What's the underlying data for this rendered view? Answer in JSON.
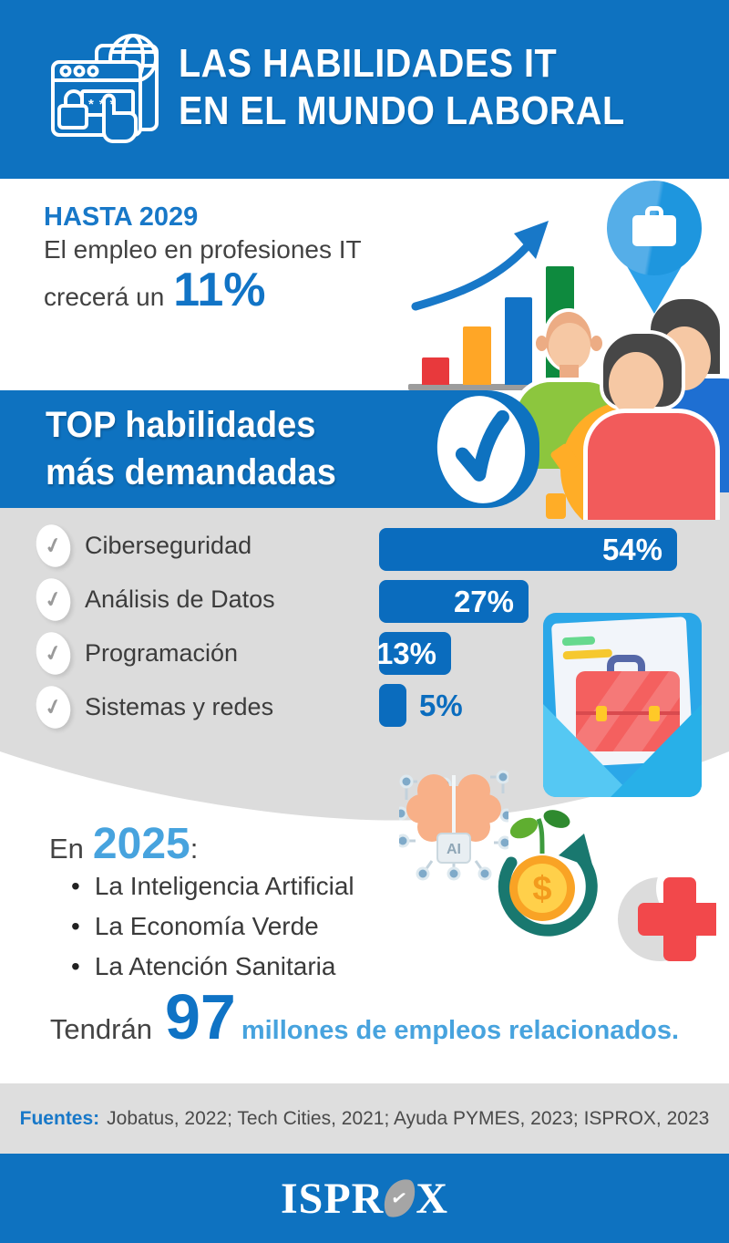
{
  "colors": {
    "primary_blue": "#0E72C0",
    "bar_blue": "#0A6CBE",
    "accent_blue": "#1878C8",
    "light_blue": "#47A3DE",
    "gray_background": "#DCDCDC",
    "dark_text": "#3C3C3C"
  },
  "header": {
    "title_line1": "LAS HABILIDADES IT",
    "title_line2": "EN EL MUNDO LABORAL"
  },
  "hero": {
    "kicker": "HASTA 2029",
    "line1": "El empleo en profesiones IT",
    "line2": "crecerá un",
    "highlight": "11%"
  },
  "top_skills": {
    "title_line1": "TOP habilidades",
    "title_line2": "más demandadas"
  },
  "chart_data": {
    "type": "bar",
    "orientation": "horizontal",
    "title": "TOP habilidades más demandadas",
    "categories": [
      "Ciberseguridad",
      "Análisis de Datos",
      "Programación",
      "Sistemas y redes"
    ],
    "values": [
      54,
      27,
      13,
      5
    ],
    "labels": [
      "54%",
      "27%",
      "13%",
      "5%"
    ],
    "unit": "%",
    "xlim": [
      0,
      54
    ],
    "grid": false,
    "legend": "none"
  },
  "outlook": {
    "prefix": "En",
    "year": "2025",
    "colon": ":",
    "bullet_glyph": "•",
    "bullets": [
      "La Inteligencia Artificial",
      "La Economía Verde",
      "La Atención Sanitaria"
    ],
    "closing_prefix": "Tendrán",
    "closing_number": "97",
    "closing_text": "millones de empleos relacionados."
  },
  "sources": {
    "label": "Fuentes:",
    "text": "Jobatus, 2022; Tech Cities, 2021; Ayuda PYMES, 2023; ISPROX, 2023"
  },
  "footer": {
    "brand_prefix": "ISPR",
    "brand_suffix": "X"
  },
  "icons": {
    "check": "✓",
    "ai_chip_label": "AI",
    "coin_symbol": "$"
  }
}
